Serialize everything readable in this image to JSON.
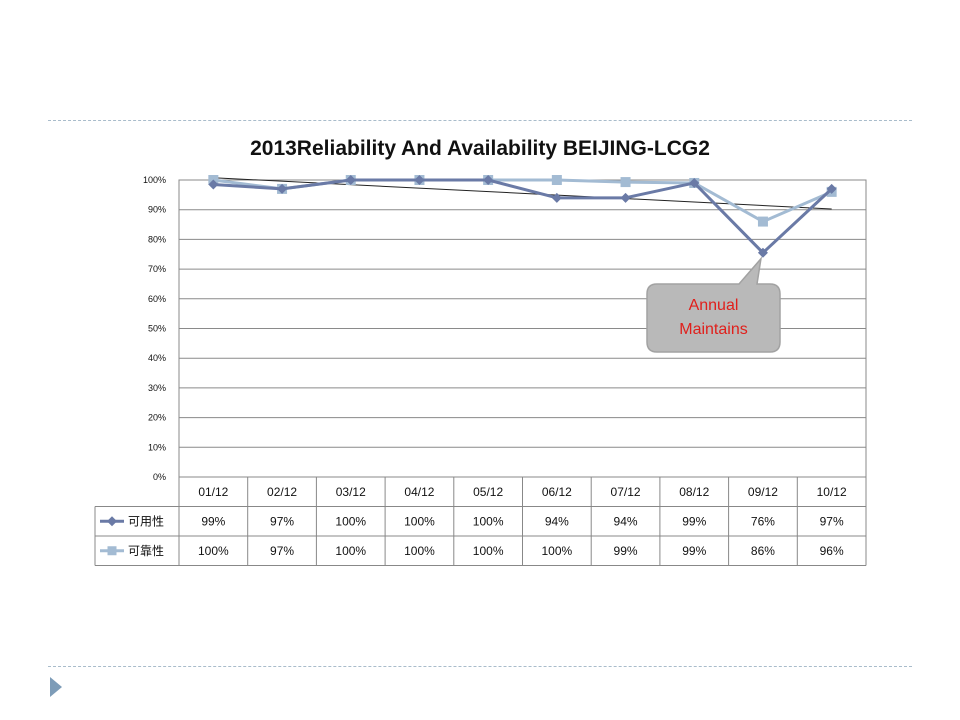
{
  "chart_data": {
    "type": "line",
    "title": "2013Reliability And Availability BEIJING-LCG2",
    "categories": [
      "01/12",
      "02/12",
      "03/12",
      "04/12",
      "05/12",
      "06/12",
      "07/12",
      "08/12",
      "09/12",
      "10/12"
    ],
    "y_ticks": [
      "0%",
      "10%",
      "20%",
      "30%",
      "40%",
      "50%",
      "60%",
      "70%",
      "80%",
      "90%",
      "100%"
    ],
    "ylim": [
      0,
      100
    ],
    "grid": true,
    "legend": "data-table-left",
    "series": [
      {
        "name": "可用性",
        "values": [
          98.5,
          97,
          100,
          100,
          100,
          94,
          94,
          99,
          75.5,
          97
        ],
        "labels": [
          "99%",
          "97%",
          "100%",
          "100%",
          "100%",
          "94%",
          "94%",
          "99%",
          "76%",
          "97%"
        ],
        "color": "#6a7aa6",
        "marker": "diamond"
      },
      {
        "name": "可靠性",
        "values": [
          100,
          97,
          100,
          100,
          100,
          100,
          99.3,
          99,
          86,
          96
        ],
        "labels": [
          "100%",
          "97%",
          "100%",
          "100%",
          "100%",
          "100%",
          "99%",
          "99%",
          "86%",
          "96%"
        ],
        "color": "#a3bbd3",
        "marker": "square"
      }
    ],
    "trendline": {
      "series": "可用性",
      "color": "#222222"
    },
    "annotation": {
      "text_lines": [
        "Annual",
        "Maintains"
      ],
      "target_category": "09/12",
      "color": "#e0201c"
    }
  }
}
